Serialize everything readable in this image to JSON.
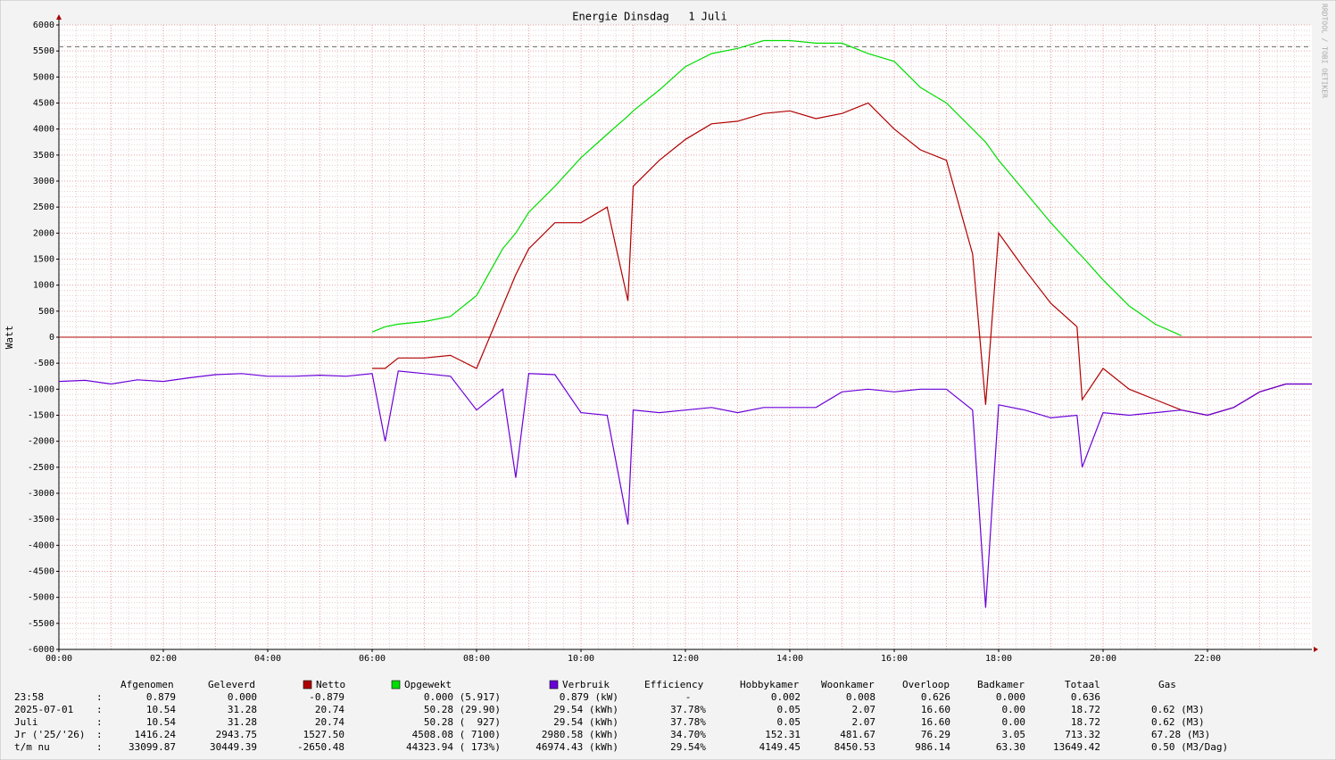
{
  "chart_data": {
    "type": "line",
    "title": "Energie Dinsdag   1 Juli",
    "y_label": "Watt",
    "watermark": "RRDTOOL / TOBI OETIKER",
    "x": [
      0,
      0.5,
      1,
      1.5,
      2,
      2.5,
      3,
      3.5,
      4,
      4.5,
      5,
      5.5,
      6,
      6.25,
      6.5,
      7,
      7.5,
      8,
      8.5,
      8.75,
      9,
      9.5,
      10,
      10.5,
      10.9,
      11,
      11.5,
      12,
      12.5,
      13,
      13.5,
      14,
      14.5,
      15,
      15.5,
      16,
      16.5,
      17,
      17.5,
      17.75,
      18,
      18.5,
      19,
      19.5,
      19.6,
      20,
      20.5,
      21,
      21.5,
      22,
      22.5,
      23,
      23.5,
      24
    ],
    "series": [
      {
        "name": "Netto",
        "color": "#b00000",
        "values": [
          null,
          null,
          null,
          null,
          null,
          null,
          null,
          null,
          null,
          null,
          null,
          null,
          -600,
          -600,
          -400,
          -400,
          -350,
          -600,
          600,
          1200,
          1700,
          2200,
          2200,
          2500,
          700,
          2900,
          3400,
          3800,
          4100,
          4150,
          4300,
          4350,
          4200,
          4300,
          4500,
          4000,
          3600,
          3400,
          1600,
          -1300,
          2000,
          1300,
          650,
          200,
          -1200,
          -600,
          -1000,
          -1200,
          -1400,
          -1500,
          -1350,
          -1050,
          -900,
          -900
        ]
      },
      {
        "name": "Opgewekt",
        "color": "#00dd00",
        "values": [
          null,
          null,
          null,
          null,
          null,
          null,
          null,
          null,
          null,
          null,
          null,
          null,
          100,
          200,
          250,
          300,
          400,
          800,
          1700,
          2000,
          2400,
          2900,
          3450,
          3900,
          4250,
          4350,
          4750,
          5200,
          5450,
          5550,
          5700,
          5700,
          5650,
          5650,
          5450,
          5300,
          4800,
          4500,
          4000,
          3750,
          3400,
          2800,
          2200,
          1650,
          1550,
          1100,
          600,
          250,
          30,
          null,
          null,
          null,
          null,
          null
        ]
      },
      {
        "name": "Verbruik",
        "color": "#6a00d8",
        "values": [
          -850,
          -830,
          -900,
          -820,
          -850,
          -780,
          -720,
          -700,
          -750,
          -750,
          -730,
          -750,
          -700,
          -2000,
          -650,
          -700,
          -750,
          -1400,
          -1000,
          -2700,
          -700,
          -720,
          -1450,
          -1500,
          -3600,
          -1400,
          -1450,
          -1400,
          -1350,
          -1450,
          -1350,
          -1350,
          -1350,
          -1050,
          -1000,
          -1050,
          -1000,
          -1000,
          -1400,
          -5200,
          -1300,
          -1400,
          -1550,
          -1500,
          -2500,
          -1450,
          -1500,
          -1450,
          -1400,
          -1500,
          -1350,
          -1050,
          -900,
          -900
        ]
      }
    ],
    "reference_line": 5580,
    "xlim": [
      0,
      24
    ],
    "xticks": [
      {
        "value": 0,
        "label": "00:00"
      },
      {
        "value": 2,
        "label": "02:00"
      },
      {
        "value": 4,
        "label": "04:00"
      },
      {
        "value": 6,
        "label": "06:00"
      },
      {
        "value": 8,
        "label": "08:00"
      },
      {
        "value": 10,
        "label": "10:00"
      },
      {
        "value": 12,
        "label": "12:00"
      },
      {
        "value": 14,
        "label": "14:00"
      },
      {
        "value": 16,
        "label": "16:00"
      },
      {
        "value": 18,
        "label": "18:00"
      },
      {
        "value": 20,
        "label": "20:00"
      },
      {
        "value": 22,
        "label": "22:00"
      }
    ],
    "ylim": [
      -6000,
      6000
    ],
    "yticks": [
      -6000,
      -5500,
      -5000,
      -4500,
      -4000,
      -3500,
      -3000,
      -2500,
      -2000,
      -1500,
      -1000,
      -500,
      0,
      500,
      1000,
      1500,
      2000,
      2500,
      3000,
      3500,
      4000,
      4500,
      5000,
      5500,
      6000
    ],
    "grid": true
  },
  "table": {
    "header": [
      "Afgenomen",
      "Geleverd",
      "Efficiency",
      "Hobbykamer",
      "Woonkamer",
      "Overloop",
      "Badkamer",
      "Totaal",
      "Gas"
    ],
    "separator": ":",
    "rows": [
      [
        "23:58",
        "0.879",
        "0.000",
        "-0.879",
        "0.000 (5.917)",
        "0.879 (kW)",
        "-",
        "0.002",
        "0.008",
        "0.626",
        "0.000",
        "0.636"
      ],
      [
        "2025-07-01",
        "10.54",
        "31.28",
        "20.74",
        "50.28 (29.90)",
        "29.54 (kWh)",
        "37.78%",
        "0.05",
        "2.07",
        "16.60",
        "0.00",
        "18.72",
        "0.62 (M3)"
      ],
      [
        "Juli",
        "10.54",
        "31.28",
        "20.74",
        "50.28 (  927)",
        "29.54 (kWh)",
        "37.78%",
        "0.05",
        "2.07",
        "16.60",
        "0.00",
        "18.72",
        "0.62 (M3)"
      ],
      [
        "Jr ('25/'26)",
        "1416.24",
        "2943.75",
        "1527.50",
        "4508.08 ( 7100)",
        "2980.58 (kWh)",
        "34.70%",
        "152.31",
        "481.67",
        "76.29",
        "3.05",
        "713.32",
        "67.28 (M3)"
      ],
      [
        "t/m nu",
        "33099.87",
        "30449.39",
        "-2650.48",
        "44323.94 ( 173%)",
        "46974.43 (kWh)",
        "29.54%",
        "4149.45",
        "8450.53",
        "986.14",
        "63.30",
        "13649.42",
        "0.50 (M3/Dag)"
      ]
    ]
  }
}
